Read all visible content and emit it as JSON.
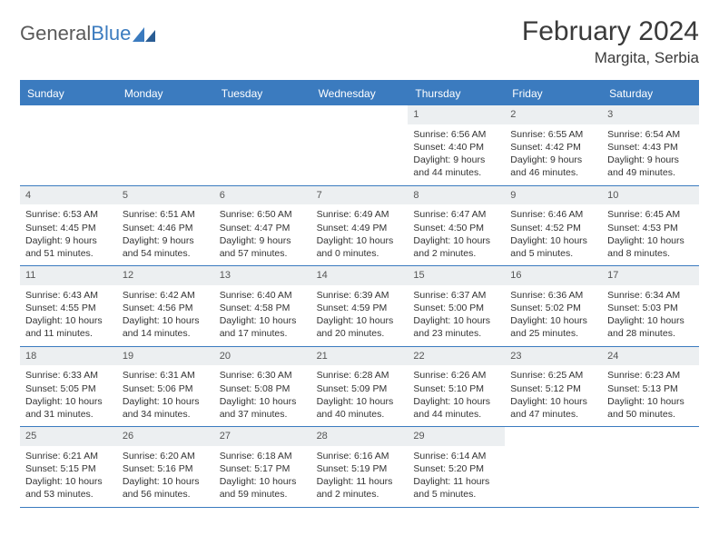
{
  "brand": {
    "part1": "General",
    "part2": "Blue"
  },
  "title": "February 2024",
  "location": "Margita, Serbia",
  "colors": {
    "accent": "#3b7bbf",
    "dayhead_bg": "#3b7bbf",
    "dayhead_fg": "#ffffff",
    "daynum_bg": "#eceff1",
    "text": "#333333"
  },
  "weekdays": [
    "Sunday",
    "Monday",
    "Tuesday",
    "Wednesday",
    "Thursday",
    "Friday",
    "Saturday"
  ],
  "leading_blanks": 4,
  "days": [
    {
      "n": "1",
      "sunrise": "Sunrise: 6:56 AM",
      "sunset": "Sunset: 4:40 PM",
      "day1": "Daylight: 9 hours",
      "day2": "and 44 minutes."
    },
    {
      "n": "2",
      "sunrise": "Sunrise: 6:55 AM",
      "sunset": "Sunset: 4:42 PM",
      "day1": "Daylight: 9 hours",
      "day2": "and 46 minutes."
    },
    {
      "n": "3",
      "sunrise": "Sunrise: 6:54 AM",
      "sunset": "Sunset: 4:43 PM",
      "day1": "Daylight: 9 hours",
      "day2": "and 49 minutes."
    },
    {
      "n": "4",
      "sunrise": "Sunrise: 6:53 AM",
      "sunset": "Sunset: 4:45 PM",
      "day1": "Daylight: 9 hours",
      "day2": "and 51 minutes."
    },
    {
      "n": "5",
      "sunrise": "Sunrise: 6:51 AM",
      "sunset": "Sunset: 4:46 PM",
      "day1": "Daylight: 9 hours",
      "day2": "and 54 minutes."
    },
    {
      "n": "6",
      "sunrise": "Sunrise: 6:50 AM",
      "sunset": "Sunset: 4:47 PM",
      "day1": "Daylight: 9 hours",
      "day2": "and 57 minutes."
    },
    {
      "n": "7",
      "sunrise": "Sunrise: 6:49 AM",
      "sunset": "Sunset: 4:49 PM",
      "day1": "Daylight: 10 hours",
      "day2": "and 0 minutes."
    },
    {
      "n": "8",
      "sunrise": "Sunrise: 6:47 AM",
      "sunset": "Sunset: 4:50 PM",
      "day1": "Daylight: 10 hours",
      "day2": "and 2 minutes."
    },
    {
      "n": "9",
      "sunrise": "Sunrise: 6:46 AM",
      "sunset": "Sunset: 4:52 PM",
      "day1": "Daylight: 10 hours",
      "day2": "and 5 minutes."
    },
    {
      "n": "10",
      "sunrise": "Sunrise: 6:45 AM",
      "sunset": "Sunset: 4:53 PM",
      "day1": "Daylight: 10 hours",
      "day2": "and 8 minutes."
    },
    {
      "n": "11",
      "sunrise": "Sunrise: 6:43 AM",
      "sunset": "Sunset: 4:55 PM",
      "day1": "Daylight: 10 hours",
      "day2": "and 11 minutes."
    },
    {
      "n": "12",
      "sunrise": "Sunrise: 6:42 AM",
      "sunset": "Sunset: 4:56 PM",
      "day1": "Daylight: 10 hours",
      "day2": "and 14 minutes."
    },
    {
      "n": "13",
      "sunrise": "Sunrise: 6:40 AM",
      "sunset": "Sunset: 4:58 PM",
      "day1": "Daylight: 10 hours",
      "day2": "and 17 minutes."
    },
    {
      "n": "14",
      "sunrise": "Sunrise: 6:39 AM",
      "sunset": "Sunset: 4:59 PM",
      "day1": "Daylight: 10 hours",
      "day2": "and 20 minutes."
    },
    {
      "n": "15",
      "sunrise": "Sunrise: 6:37 AM",
      "sunset": "Sunset: 5:00 PM",
      "day1": "Daylight: 10 hours",
      "day2": "and 23 minutes."
    },
    {
      "n": "16",
      "sunrise": "Sunrise: 6:36 AM",
      "sunset": "Sunset: 5:02 PM",
      "day1": "Daylight: 10 hours",
      "day2": "and 25 minutes."
    },
    {
      "n": "17",
      "sunrise": "Sunrise: 6:34 AM",
      "sunset": "Sunset: 5:03 PM",
      "day1": "Daylight: 10 hours",
      "day2": "and 28 minutes."
    },
    {
      "n": "18",
      "sunrise": "Sunrise: 6:33 AM",
      "sunset": "Sunset: 5:05 PM",
      "day1": "Daylight: 10 hours",
      "day2": "and 31 minutes."
    },
    {
      "n": "19",
      "sunrise": "Sunrise: 6:31 AM",
      "sunset": "Sunset: 5:06 PM",
      "day1": "Daylight: 10 hours",
      "day2": "and 34 minutes."
    },
    {
      "n": "20",
      "sunrise": "Sunrise: 6:30 AM",
      "sunset": "Sunset: 5:08 PM",
      "day1": "Daylight: 10 hours",
      "day2": "and 37 minutes."
    },
    {
      "n": "21",
      "sunrise": "Sunrise: 6:28 AM",
      "sunset": "Sunset: 5:09 PM",
      "day1": "Daylight: 10 hours",
      "day2": "and 40 minutes."
    },
    {
      "n": "22",
      "sunrise": "Sunrise: 6:26 AM",
      "sunset": "Sunset: 5:10 PM",
      "day1": "Daylight: 10 hours",
      "day2": "and 44 minutes."
    },
    {
      "n": "23",
      "sunrise": "Sunrise: 6:25 AM",
      "sunset": "Sunset: 5:12 PM",
      "day1": "Daylight: 10 hours",
      "day2": "and 47 minutes."
    },
    {
      "n": "24",
      "sunrise": "Sunrise: 6:23 AM",
      "sunset": "Sunset: 5:13 PM",
      "day1": "Daylight: 10 hours",
      "day2": "and 50 minutes."
    },
    {
      "n": "25",
      "sunrise": "Sunrise: 6:21 AM",
      "sunset": "Sunset: 5:15 PM",
      "day1": "Daylight: 10 hours",
      "day2": "and 53 minutes."
    },
    {
      "n": "26",
      "sunrise": "Sunrise: 6:20 AM",
      "sunset": "Sunset: 5:16 PM",
      "day1": "Daylight: 10 hours",
      "day2": "and 56 minutes."
    },
    {
      "n": "27",
      "sunrise": "Sunrise: 6:18 AM",
      "sunset": "Sunset: 5:17 PM",
      "day1": "Daylight: 10 hours",
      "day2": "and 59 minutes."
    },
    {
      "n": "28",
      "sunrise": "Sunrise: 6:16 AM",
      "sunset": "Sunset: 5:19 PM",
      "day1": "Daylight: 11 hours",
      "day2": "and 2 minutes."
    },
    {
      "n": "29",
      "sunrise": "Sunrise: 6:14 AM",
      "sunset": "Sunset: 5:20 PM",
      "day1": "Daylight: 11 hours",
      "day2": "and 5 minutes."
    }
  ]
}
